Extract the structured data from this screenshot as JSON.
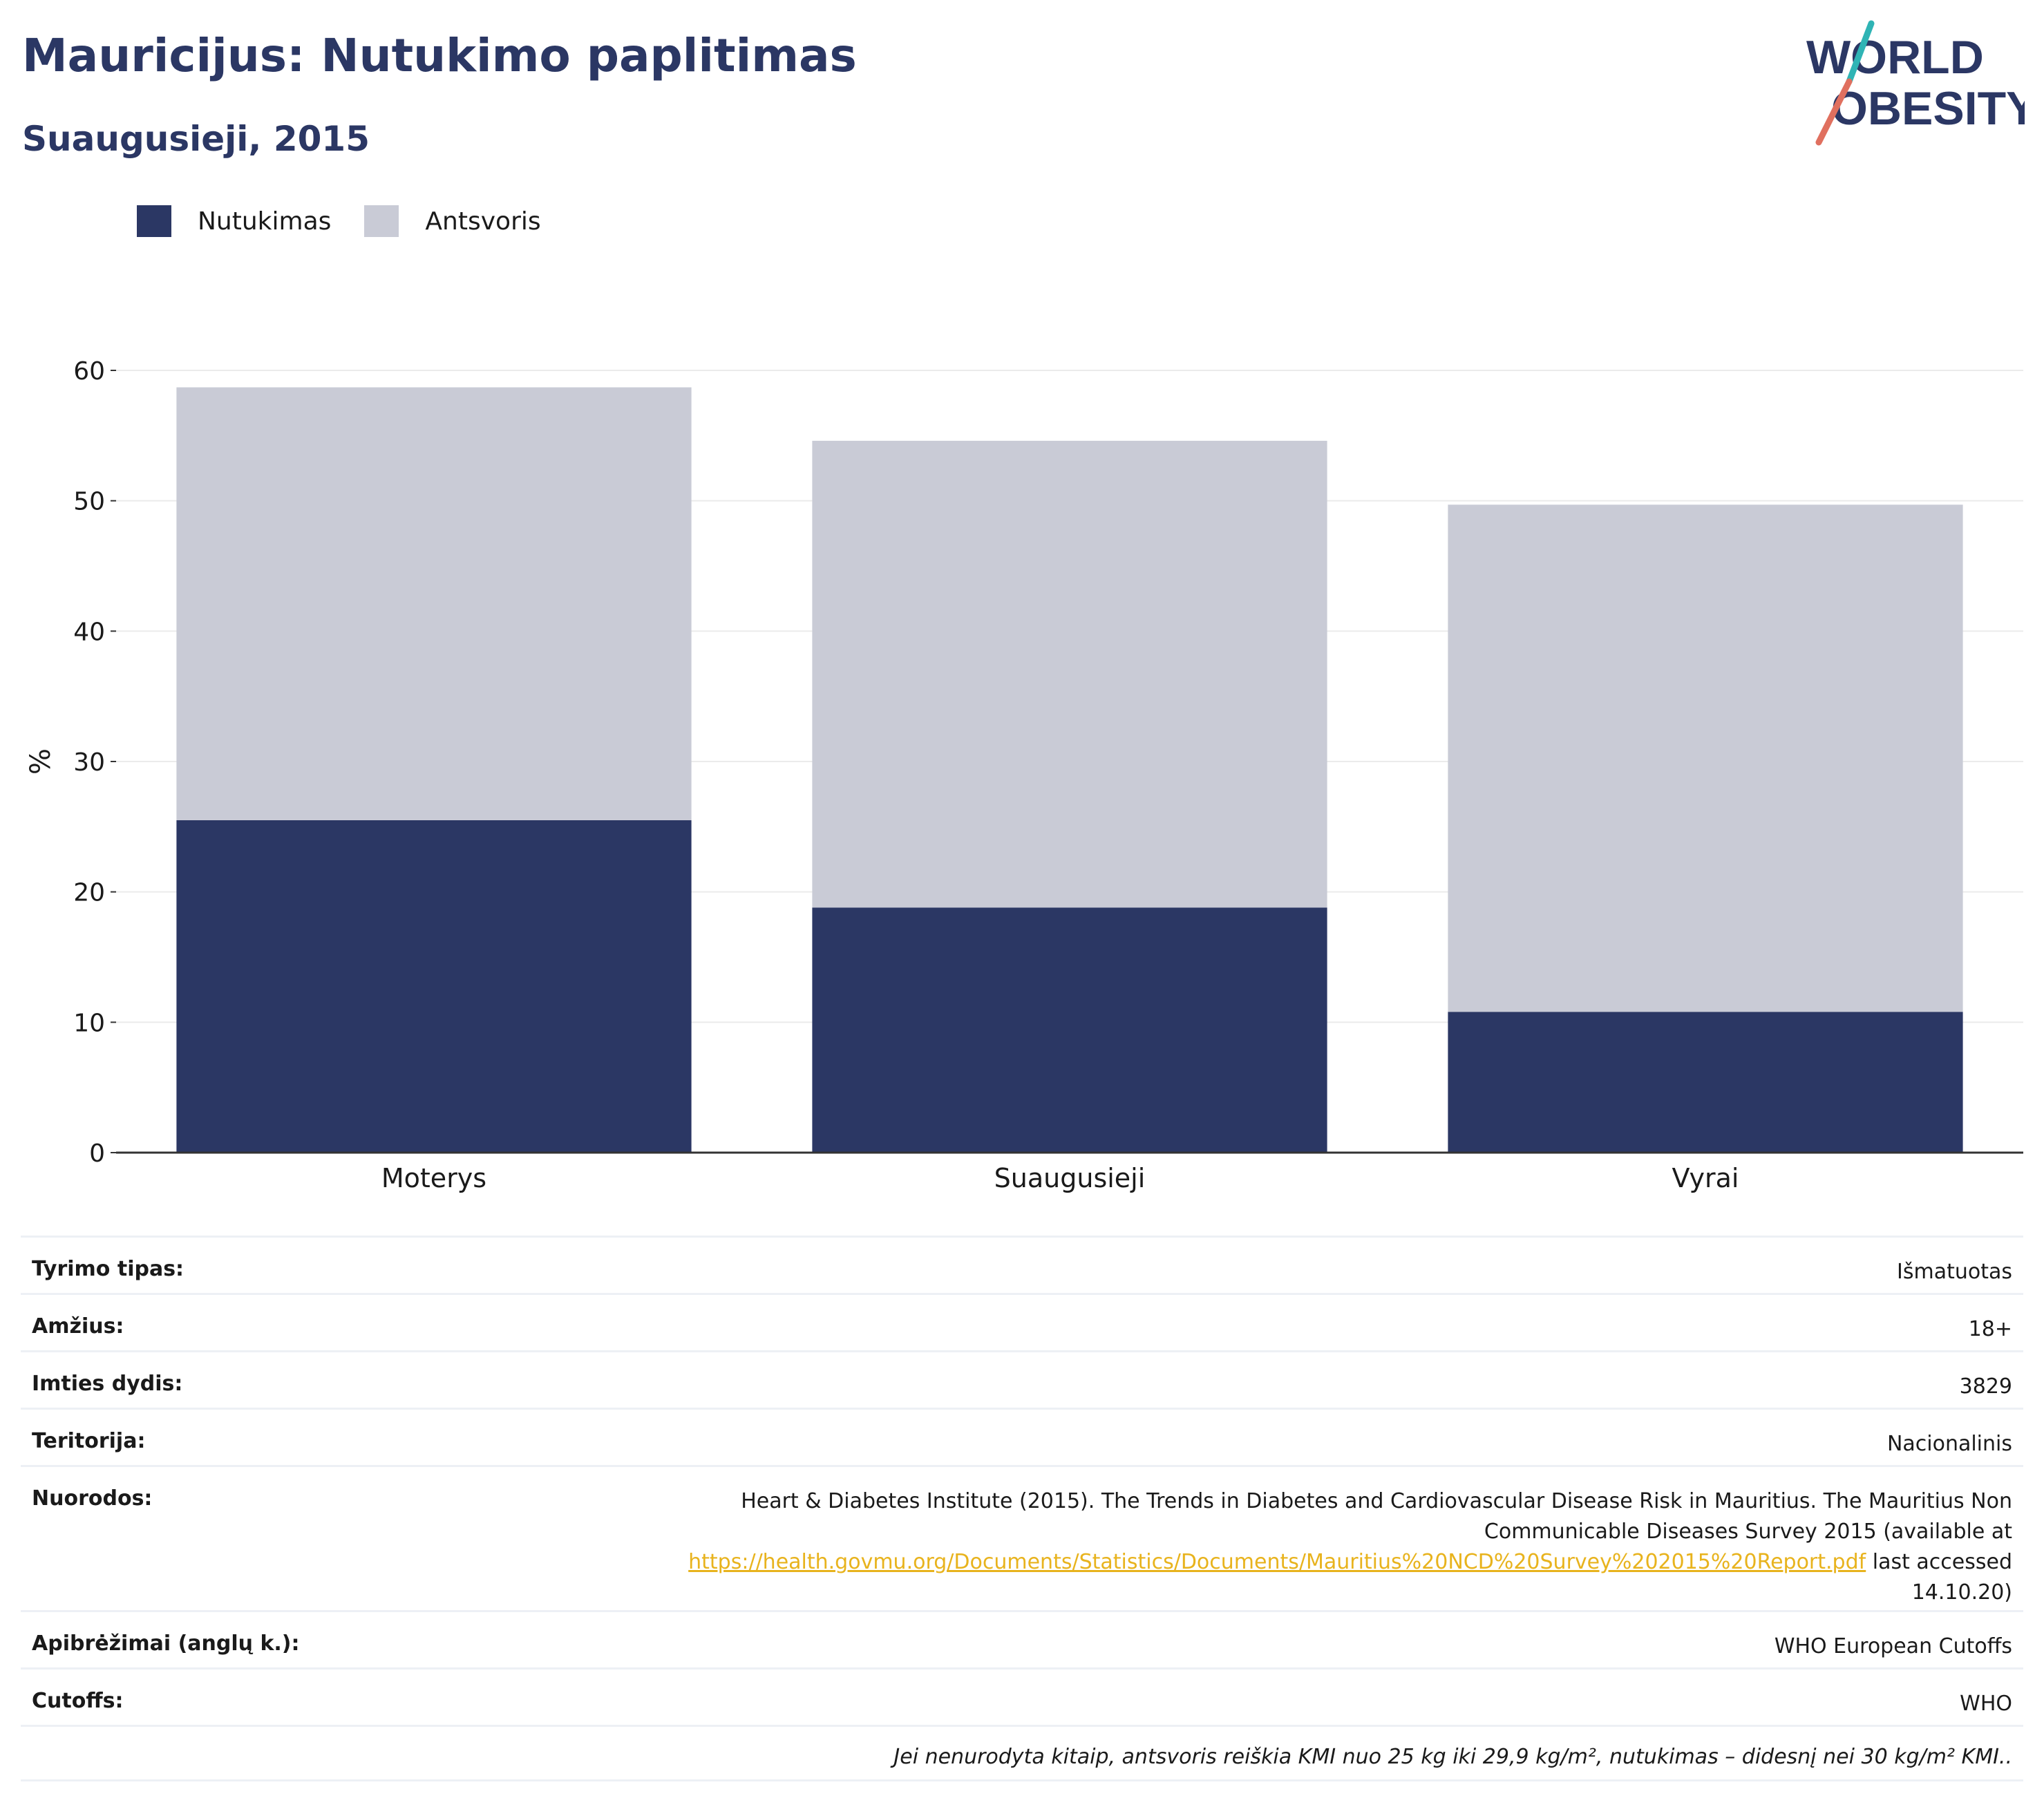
{
  "header": {
    "title": "Mauricijus: Nutukimo paplitimas",
    "subtitle": "Suaugusieji, 2015"
  },
  "logo": {
    "line1": "WORLD",
    "line2": "OBESITY",
    "accent_colors": [
      "#2fb4b5",
      "#e0705f"
    ]
  },
  "legend": [
    {
      "label": "Nutukimas",
      "color": "#2b3764"
    },
    {
      "label": "Antsvoris",
      "color": "#c9cbd6"
    }
  ],
  "chart_data": {
    "type": "bar",
    "stacked": true,
    "categories": [
      "Moterys",
      "Suaugusieji",
      "Vyrai"
    ],
    "series": [
      {
        "name": "Nutukimas",
        "color": "#2b3764",
        "values": [
          25.5,
          18.8,
          10.8
        ]
      },
      {
        "name": "Antsvoris",
        "color": "#c9cbd6",
        "values": [
          33.2,
          35.8,
          38.9
        ]
      }
    ],
    "ylabel": "%",
    "ylim": [
      0,
      60
    ],
    "yticks": [
      0,
      10,
      20,
      30,
      40,
      50,
      60
    ],
    "grid": true
  },
  "info": {
    "rows": [
      {
        "key": "Tyrimo tipas:",
        "value": "Išmatuotas"
      },
      {
        "key": "Amžius:",
        "value": "18+"
      },
      {
        "key": "Imties dydis:",
        "value": "3829"
      },
      {
        "key": "Teritorija:",
        "value": "Nacionalinis"
      }
    ],
    "refs": {
      "key": "Nuorodos:",
      "line1": "Heart & Diabetes Institute (2015). The Trends in Diabetes and Cardiovascular Disease Risk in Mauritius. The Mauritius Non",
      "line2": "Communicable Diseases Survey 2015 (available at",
      "link": "https://health.govmu.org/Documents/Statistics/Documents/Mauritius%20NCD%20Survey%202015%20Report.pdf",
      "after_link": " last accessed",
      "line4": "14.10.20)"
    },
    "rows2": [
      {
        "key": "Apibrėžimai (anglų k.):",
        "value": "WHO European Cutoffs"
      },
      {
        "key": "Cutoffs:",
        "value": "WHO"
      }
    ],
    "note": "Jei nenurodyta kitaip, antsvoris reiškia KMI nuo 25 kg iki 29,9 kg/m², nutukimas – didesnį nei 30 kg/m² KMI.."
  }
}
